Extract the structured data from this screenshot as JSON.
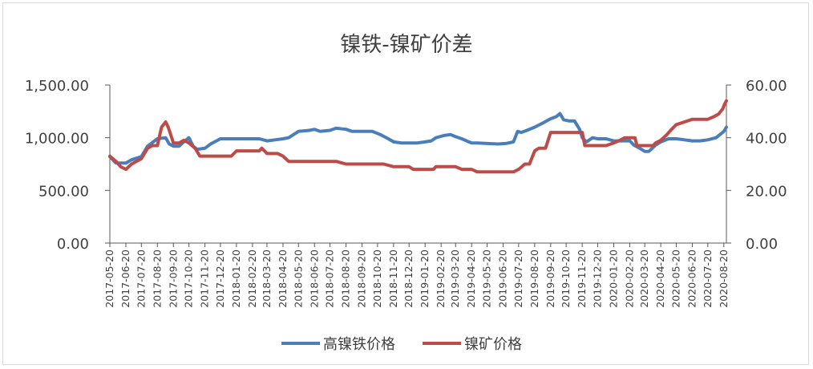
{
  "chart_data": {
    "type": "line",
    "title": "镍铁-镍矿价差",
    "y_left": {
      "range": [
        0,
        1500
      ],
      "ticks": [
        0,
        500,
        1000,
        1500
      ],
      "tick_labels": [
        "0.00",
        "500.00",
        "1,000.00",
        "1,500.00"
      ]
    },
    "y_right": {
      "range": [
        0,
        60
      ],
      "ticks": [
        0,
        20,
        40,
        60
      ],
      "tick_labels": [
        "0.00",
        "20.00",
        "40.00",
        "60.00"
      ]
    },
    "x_range": [
      "2017-05-20",
      "2020-08-25"
    ],
    "x_tick_labels": [
      "2017-05-20",
      "2017-06-20",
      "2017-07-20",
      "2017-08-20",
      "2017-09-20",
      "2017-10-20",
      "2017-11-20",
      "2017-12-20",
      "2018-01-20",
      "2018-02-20",
      "2018-03-20",
      "2018-04-20",
      "2018-05-20",
      "2018-06-20",
      "2018-07-20",
      "2018-08-20",
      "2018-09-20",
      "2018-10-20",
      "2018-11-20",
      "2018-12-20",
      "2019-01-20",
      "2019-02-20",
      "2019-03-20",
      "2019-04-20",
      "2019-05-20",
      "2019-06-20",
      "2019-07-20",
      "2019-08-20",
      "2019-09-20",
      "2019-10-20",
      "2019-11-20",
      "2019-12-20",
      "2020-01-20",
      "2020-02-20",
      "2020-03-20",
      "2020-04-20",
      "2020-05-20",
      "2020-06-20",
      "2020-07-20",
      "2020-08-20"
    ],
    "legend_position": "bottom",
    "grid": false,
    "series": [
      {
        "name": "高镍铁价格",
        "axis": "left",
        "color": "#4a7ebb",
        "points": [
          [
            "2017-05-20",
            820
          ],
          [
            "2017-06-01",
            760
          ],
          [
            "2017-06-20",
            760
          ],
          [
            "2017-07-01",
            790
          ],
          [
            "2017-07-20",
            820
          ],
          [
            "2017-08-01",
            920
          ],
          [
            "2017-08-20",
            990
          ],
          [
            "2017-09-05",
            1000
          ],
          [
            "2017-09-12",
            940
          ],
          [
            "2017-09-20",
            920
          ],
          [
            "2017-10-01",
            920
          ],
          [
            "2017-10-10",
            960
          ],
          [
            "2017-10-20",
            1000
          ],
          [
            "2017-10-28",
            920
          ],
          [
            "2017-11-05",
            890
          ],
          [
            "2017-11-20",
            900
          ],
          [
            "2017-12-01",
            940
          ],
          [
            "2017-12-20",
            990
          ],
          [
            "2018-01-01",
            990
          ],
          [
            "2018-01-20",
            990
          ],
          [
            "2018-02-20",
            990
          ],
          [
            "2018-03-05",
            990
          ],
          [
            "2018-03-20",
            970
          ],
          [
            "2018-04-05",
            980
          ],
          [
            "2018-04-20",
            990
          ],
          [
            "2018-05-01",
            1000
          ],
          [
            "2018-05-20",
            1060
          ],
          [
            "2018-06-10",
            1070
          ],
          [
            "2018-06-20",
            1080
          ],
          [
            "2018-07-01",
            1060
          ],
          [
            "2018-07-20",
            1070
          ],
          [
            "2018-08-01",
            1090
          ],
          [
            "2018-08-20",
            1080
          ],
          [
            "2018-09-01",
            1060
          ],
          [
            "2018-09-20",
            1060
          ],
          [
            "2018-10-10",
            1060
          ],
          [
            "2018-10-25",
            1030
          ],
          [
            "2018-11-10",
            990
          ],
          [
            "2018-11-20",
            960
          ],
          [
            "2018-12-05",
            950
          ],
          [
            "2018-12-20",
            950
          ],
          [
            "2019-01-05",
            950
          ],
          [
            "2019-01-20",
            960
          ],
          [
            "2019-02-01",
            970
          ],
          [
            "2019-02-10",
            1000
          ],
          [
            "2019-02-25",
            1020
          ],
          [
            "2019-03-10",
            1030
          ],
          [
            "2019-03-20",
            1010
          ],
          [
            "2019-04-01",
            990
          ],
          [
            "2019-04-10",
            970
          ],
          [
            "2019-04-20",
            950
          ],
          [
            "2019-05-01",
            950
          ],
          [
            "2019-05-20",
            945
          ],
          [
            "2019-06-10",
            940
          ],
          [
            "2019-06-25",
            945
          ],
          [
            "2019-07-10",
            960
          ],
          [
            "2019-07-18",
            1060
          ],
          [
            "2019-07-25",
            1050
          ],
          [
            "2019-08-05",
            1070
          ],
          [
            "2019-08-20",
            1100
          ],
          [
            "2019-09-05",
            1140
          ],
          [
            "2019-09-20",
            1180
          ],
          [
            "2019-10-01",
            1200
          ],
          [
            "2019-10-08",
            1230
          ],
          [
            "2019-10-15",
            1170
          ],
          [
            "2019-10-25",
            1160
          ],
          [
            "2019-11-05",
            1160
          ],
          [
            "2019-11-15",
            1080
          ],
          [
            "2019-11-20",
            1000
          ],
          [
            "2019-11-28",
            960
          ],
          [
            "2019-12-10",
            1000
          ],
          [
            "2019-12-20",
            990
          ],
          [
            "2020-01-05",
            990
          ],
          [
            "2020-01-20",
            970
          ],
          [
            "2020-02-05",
            970
          ],
          [
            "2020-02-20",
            970
          ],
          [
            "2020-02-28",
            930
          ],
          [
            "2020-03-10",
            900
          ],
          [
            "2020-03-20",
            870
          ],
          [
            "2020-03-28",
            870
          ],
          [
            "2020-04-10",
            930
          ],
          [
            "2020-04-20",
            960
          ],
          [
            "2020-05-05",
            990
          ],
          [
            "2020-05-20",
            990
          ],
          [
            "2020-06-05",
            980
          ],
          [
            "2020-06-20",
            970
          ],
          [
            "2020-07-05",
            970
          ],
          [
            "2020-07-20",
            980
          ],
          [
            "2020-08-05",
            1000
          ],
          [
            "2020-08-15",
            1040
          ],
          [
            "2020-08-20",
            1060
          ],
          [
            "2020-08-25",
            1100
          ]
        ]
      },
      {
        "name": "镍矿价格",
        "axis": "right",
        "color": "#be4b48",
        "points": [
          [
            "2017-05-20",
            33
          ],
          [
            "2017-06-01",
            31
          ],
          [
            "2017-06-10",
            29
          ],
          [
            "2017-06-20",
            28
          ],
          [
            "2017-07-01",
            30
          ],
          [
            "2017-07-20",
            32
          ],
          [
            "2017-08-01",
            36
          ],
          [
            "2017-08-10",
            37
          ],
          [
            "2017-08-20",
            37
          ],
          [
            "2017-08-28",
            44
          ],
          [
            "2017-09-05",
            46
          ],
          [
            "2017-09-10",
            44
          ],
          [
            "2017-09-20",
            38
          ],
          [
            "2017-10-01",
            38
          ],
          [
            "2017-10-10",
            39
          ],
          [
            "2017-10-20",
            38
          ],
          [
            "2017-11-01",
            36
          ],
          [
            "2017-11-10",
            33
          ],
          [
            "2017-11-20",
            33
          ],
          [
            "2017-12-20",
            33
          ],
          [
            "2018-01-10",
            33
          ],
          [
            "2018-01-20",
            35
          ],
          [
            "2018-02-20",
            35
          ],
          [
            "2018-03-05",
            35
          ],
          [
            "2018-03-10",
            36
          ],
          [
            "2018-03-20",
            34
          ],
          [
            "2018-04-10",
            34
          ],
          [
            "2018-04-20",
            33
          ],
          [
            "2018-05-01",
            31
          ],
          [
            "2018-05-20",
            31
          ],
          [
            "2018-06-20",
            31
          ],
          [
            "2018-07-20",
            31
          ],
          [
            "2018-08-01",
            31
          ],
          [
            "2018-08-20",
            30
          ],
          [
            "2018-09-20",
            30
          ],
          [
            "2018-10-20",
            30
          ],
          [
            "2018-11-01",
            30
          ],
          [
            "2018-11-20",
            29
          ],
          [
            "2018-12-20",
            29
          ],
          [
            "2018-12-28",
            28
          ],
          [
            "2019-01-20",
            28
          ],
          [
            "2019-02-05",
            28
          ],
          [
            "2019-02-10",
            29
          ],
          [
            "2019-03-01",
            29
          ],
          [
            "2019-03-20",
            29
          ],
          [
            "2019-04-01",
            28
          ],
          [
            "2019-04-20",
            28
          ],
          [
            "2019-05-01",
            27
          ],
          [
            "2019-05-20",
            27
          ],
          [
            "2019-06-20",
            27
          ],
          [
            "2019-07-10",
            27
          ],
          [
            "2019-07-20",
            28
          ],
          [
            "2019-08-01",
            30
          ],
          [
            "2019-08-10",
            30
          ],
          [
            "2019-08-20",
            35
          ],
          [
            "2019-08-28",
            36
          ],
          [
            "2019-09-10",
            36
          ],
          [
            "2019-09-20",
            42
          ],
          [
            "2019-10-20",
            42
          ],
          [
            "2019-11-20",
            42
          ],
          [
            "2019-11-25",
            37
          ],
          [
            "2019-12-20",
            37
          ],
          [
            "2020-01-05",
            37
          ],
          [
            "2020-01-20",
            38
          ],
          [
            "2020-02-01",
            39
          ],
          [
            "2020-02-10",
            40
          ],
          [
            "2020-02-20",
            40
          ],
          [
            "2020-03-01",
            40
          ],
          [
            "2020-03-05",
            37
          ],
          [
            "2020-03-20",
            37
          ],
          [
            "2020-04-05",
            37
          ],
          [
            "2020-04-10",
            38
          ],
          [
            "2020-04-20",
            39
          ],
          [
            "2020-05-01",
            41
          ],
          [
            "2020-05-10",
            43
          ],
          [
            "2020-05-20",
            45
          ],
          [
            "2020-06-05",
            46
          ],
          [
            "2020-06-20",
            47
          ],
          [
            "2020-07-20",
            47
          ],
          [
            "2020-08-01",
            48
          ],
          [
            "2020-08-10",
            49
          ],
          [
            "2020-08-18",
            51
          ],
          [
            "2020-08-22",
            53
          ],
          [
            "2020-08-25",
            54
          ]
        ]
      }
    ]
  }
}
